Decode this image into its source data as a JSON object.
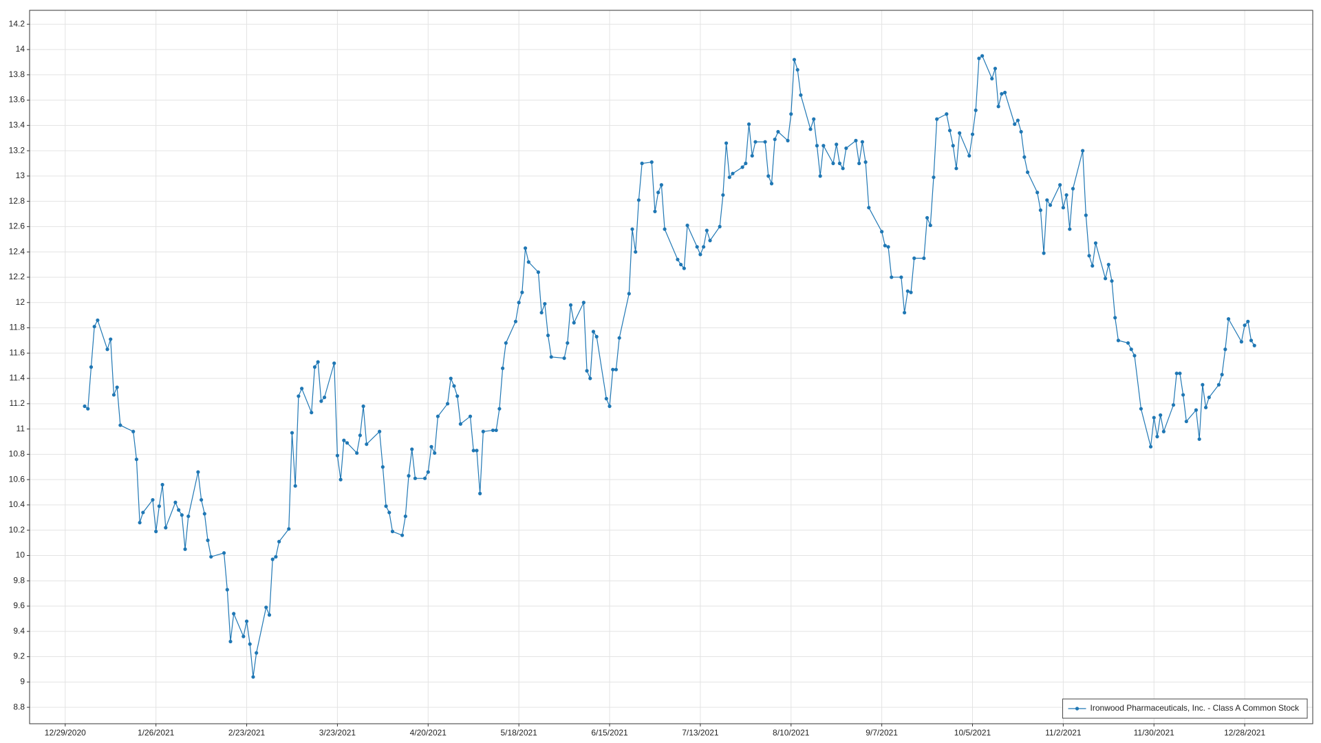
{
  "chart_data": {
    "type": "line",
    "x": [
      "1/4/2021",
      "1/5/2021",
      "1/6/2021",
      "1/7/2021",
      "1/8/2021",
      "1/11/2021",
      "1/12/2021",
      "1/13/2021",
      "1/14/2021",
      "1/15/2021",
      "1/19/2021",
      "1/20/2021",
      "1/21/2021",
      "1/22/2021",
      "1/25/2021",
      "1/26/2021",
      "1/27/2021",
      "1/28/2021",
      "1/29/2021",
      "2/1/2021",
      "2/2/2021",
      "2/3/2021",
      "2/4/2021",
      "2/5/2021",
      "2/8/2021",
      "2/9/2021",
      "2/10/2021",
      "2/11/2021",
      "2/12/2021",
      "2/16/2021",
      "2/17/2021",
      "2/18/2021",
      "2/19/2021",
      "2/22/2021",
      "2/23/2021",
      "2/24/2021",
      "2/25/2021",
      "2/26/2021",
      "3/1/2021",
      "3/2/2021",
      "3/3/2021",
      "3/4/2021",
      "3/5/2021",
      "3/8/2021",
      "3/9/2021",
      "3/10/2021",
      "3/11/2021",
      "3/12/2021",
      "3/15/2021",
      "3/16/2021",
      "3/17/2021",
      "3/18/2021",
      "3/19/2021",
      "3/22/2021",
      "3/23/2021",
      "3/24/2021",
      "3/25/2021",
      "3/26/2021",
      "3/29/2021",
      "3/30/2021",
      "3/31/2021",
      "4/1/2021",
      "4/5/2021",
      "4/6/2021",
      "4/7/2021",
      "4/8/2021",
      "4/9/2021",
      "4/12/2021",
      "4/13/2021",
      "4/14/2021",
      "4/15/2021",
      "4/16/2021",
      "4/19/2021",
      "4/20/2021",
      "4/21/2021",
      "4/22/2021",
      "4/23/2021",
      "4/26/2021",
      "4/27/2021",
      "4/28/2021",
      "4/29/2021",
      "4/30/2021",
      "5/3/2021",
      "5/4/2021",
      "5/5/2021",
      "5/6/2021",
      "5/7/2021",
      "5/10/2021",
      "5/11/2021",
      "5/12/2021",
      "5/13/2021",
      "5/14/2021",
      "5/17/2021",
      "5/18/2021",
      "5/19/2021",
      "5/20/2021",
      "5/21/2021",
      "5/24/2021",
      "5/25/2021",
      "5/26/2021",
      "5/27/2021",
      "5/28/2021",
      "6/1/2021",
      "6/2/2021",
      "6/3/2021",
      "6/4/2021",
      "6/7/2021",
      "6/8/2021",
      "6/9/2021",
      "6/10/2021",
      "6/11/2021",
      "6/14/2021",
      "6/15/2021",
      "6/16/2021",
      "6/17/2021",
      "6/18/2021",
      "6/21/2021",
      "6/22/2021",
      "6/23/2021",
      "6/24/2021",
      "6/25/2021",
      "6/28/2021",
      "6/29/2021",
      "6/30/2021",
      "7/1/2021",
      "7/2/2021",
      "7/6/2021",
      "7/7/2021",
      "7/8/2021",
      "7/9/2021",
      "7/12/2021",
      "7/13/2021",
      "7/14/2021",
      "7/15/2021",
      "7/16/2021",
      "7/19/2021",
      "7/20/2021",
      "7/21/2021",
      "7/22/2021",
      "7/23/2021",
      "7/26/2021",
      "7/27/2021",
      "7/28/2021",
      "7/29/2021",
      "7/30/2021",
      "8/2/2021",
      "8/3/2021",
      "8/4/2021",
      "8/5/2021",
      "8/6/2021",
      "8/9/2021",
      "8/10/2021",
      "8/11/2021",
      "8/12/2021",
      "8/13/2021",
      "8/16/2021",
      "8/17/2021",
      "8/18/2021",
      "8/19/2021",
      "8/20/2021",
      "8/23/2021",
      "8/24/2021",
      "8/25/2021",
      "8/26/2021",
      "8/27/2021",
      "8/30/2021",
      "8/31/2021",
      "9/1/2021",
      "9/2/2021",
      "9/3/2021",
      "9/7/2021",
      "9/8/2021",
      "9/9/2021",
      "9/10/2021",
      "9/13/2021",
      "9/14/2021",
      "9/15/2021",
      "9/16/2021",
      "9/17/2021",
      "9/20/2021",
      "9/21/2021",
      "9/22/2021",
      "9/23/2021",
      "9/24/2021",
      "9/27/2021",
      "9/28/2021",
      "9/29/2021",
      "9/30/2021",
      "10/1/2021",
      "10/4/2021",
      "10/5/2021",
      "10/6/2021",
      "10/7/2021",
      "10/8/2021",
      "10/11/2021",
      "10/12/2021",
      "10/13/2021",
      "10/14/2021",
      "10/15/2021",
      "10/18/2021",
      "10/19/2021",
      "10/20/2021",
      "10/21/2021",
      "10/22/2021",
      "10/25/2021",
      "10/26/2021",
      "10/27/2021",
      "10/28/2021",
      "10/29/2021",
      "11/1/2021",
      "11/2/2021",
      "11/3/2021",
      "11/4/2021",
      "11/5/2021",
      "11/8/2021",
      "11/9/2021",
      "11/10/2021",
      "11/11/2021",
      "11/12/2021",
      "11/15/2021",
      "11/16/2021",
      "11/17/2021",
      "11/18/2021",
      "11/19/2021",
      "11/22/2021",
      "11/23/2021",
      "11/24/2021",
      "11/26/2021",
      "11/29/2021",
      "11/30/2021",
      "12/1/2021",
      "12/2/2021",
      "12/3/2021",
      "12/6/2021",
      "12/7/2021",
      "12/8/2021",
      "12/9/2021",
      "12/10/2021",
      "12/13/2021",
      "12/14/2021",
      "12/15/2021",
      "12/16/2021",
      "12/17/2021",
      "12/20/2021",
      "12/21/2021",
      "12/22/2021",
      "12/23/2021",
      "12/27/2021",
      "12/28/2021",
      "12/29/2021",
      "12/30/2021",
      "12/31/2021"
    ],
    "series": [
      {
        "name": "Ironwood Pharmaceuticals, Inc. - Class A Common Stock",
        "color": "#1f77b4",
        "values": [
          11.18,
          11.16,
          11.49,
          11.81,
          11.86,
          11.63,
          11.71,
          11.27,
          11.33,
          11.03,
          10.98,
          10.76,
          10.26,
          10.34,
          10.44,
          10.19,
          10.39,
          10.56,
          10.22,
          10.42,
          10.36,
          10.32,
          10.05,
          10.31,
          10.66,
          10.44,
          10.33,
          10.12,
          9.99,
          10.02,
          9.73,
          9.32,
          9.54,
          9.36,
          9.48,
          9.3,
          9.04,
          9.23,
          9.59,
          9.53,
          9.97,
          9.99,
          10.11,
          10.21,
          10.97,
          10.55,
          11.26,
          11.32,
          11.13,
          11.49,
          11.53,
          11.22,
          11.25,
          11.52,
          10.79,
          10.6,
          10.91,
          10.89,
          10.81,
          10.95,
          11.18,
          10.88,
          10.98,
          10.7,
          10.39,
          10.34,
          10.19,
          10.16,
          10.31,
          10.63,
          10.84,
          10.61,
          10.61,
          10.66,
          10.86,
          10.81,
          11.1,
          11.2,
          11.4,
          11.34,
          11.26,
          11.04,
          11.1,
          10.83,
          10.83,
          10.49,
          10.98,
          10.99,
          10.99,
          11.16,
          11.48,
          11.68,
          11.85,
          12.0,
          12.08,
          12.43,
          12.32,
          12.24,
          11.92,
          11.99,
          11.74,
          11.57,
          11.56,
          11.68,
          11.98,
          11.84,
          12.0,
          11.46,
          11.4,
          11.77,
          11.73,
          11.24,
          11.18,
          11.47,
          11.47,
          11.72,
          12.07,
          12.58,
          12.4,
          12.81,
          13.1,
          13.11,
          12.72,
          12.87,
          12.93,
          12.58,
          12.34,
          12.3,
          12.27,
          12.61,
          12.44,
          12.38,
          12.44,
          12.57,
          12.49,
          12.6,
          12.85,
          13.26,
          12.99,
          13.02,
          13.07,
          13.1,
          13.41,
          13.16,
          13.27,
          13.27,
          13.0,
          12.94,
          13.29,
          13.35,
          13.28,
          13.49,
          13.92,
          13.84,
          13.64,
          13.37,
          13.45,
          13.24,
          13.0,
          13.24,
          13.1,
          13.25,
          13.1,
          13.06,
          13.22,
          13.28,
          13.1,
          13.27,
          13.11,
          12.75,
          12.56,
          12.45,
          12.44,
          12.2,
          12.2,
          11.92,
          12.09,
          12.08,
          12.35,
          12.35,
          12.67,
          12.61,
          12.99,
          13.45,
          13.49,
          13.36,
          13.24,
          13.06,
          13.34,
          13.16,
          13.33,
          13.52,
          13.93,
          13.95,
          13.77,
          13.85,
          13.55,
          13.65,
          13.66,
          13.41,
          13.44,
          13.35,
          13.15,
          13.03,
          12.87,
          12.73,
          12.39,
          12.81,
          12.77,
          12.93,
          12.75,
          12.85,
          12.58,
          12.9,
          13.2,
          12.69,
          12.37,
          12.29,
          12.47,
          12.19,
          12.3,
          12.17,
          11.88,
          11.7,
          11.68,
          11.63,
          11.58,
          11.16,
          10.86,
          11.09,
          10.94,
          11.11,
          10.98,
          11.19,
          11.44,
          11.44,
          11.27,
          11.06,
          11.15,
          10.92,
          11.35,
          11.17,
          11.25,
          11.35,
          11.43,
          11.63,
          11.87,
          11.69,
          11.82,
          11.85,
          11.7,
          11.66
        ]
      }
    ],
    "xlim": [
      "12/18/2020",
      "1/18/2022"
    ],
    "xticks": [
      "12/29/2020",
      "1/26/2021",
      "2/23/2021",
      "3/23/2021",
      "4/20/2021",
      "5/18/2021",
      "6/15/2021",
      "7/13/2021",
      "8/10/2021",
      "9/7/2021",
      "10/5/2021",
      "11/2/2021",
      "11/30/2021",
      "12/28/2021"
    ],
    "ylim": [
      8.67,
      14.31
    ],
    "yticks": [
      8.8,
      9,
      9.2,
      9.4,
      9.6,
      9.8,
      10,
      10.2,
      10.4,
      10.6,
      10.8,
      11,
      11.2,
      11.4,
      11.6,
      11.8,
      12,
      12.2,
      12.4,
      12.6,
      12.8,
      13,
      13.2,
      13.4,
      13.6,
      13.8,
      14,
      14.2
    ],
    "grid": true,
    "legend": "bottom-right"
  }
}
